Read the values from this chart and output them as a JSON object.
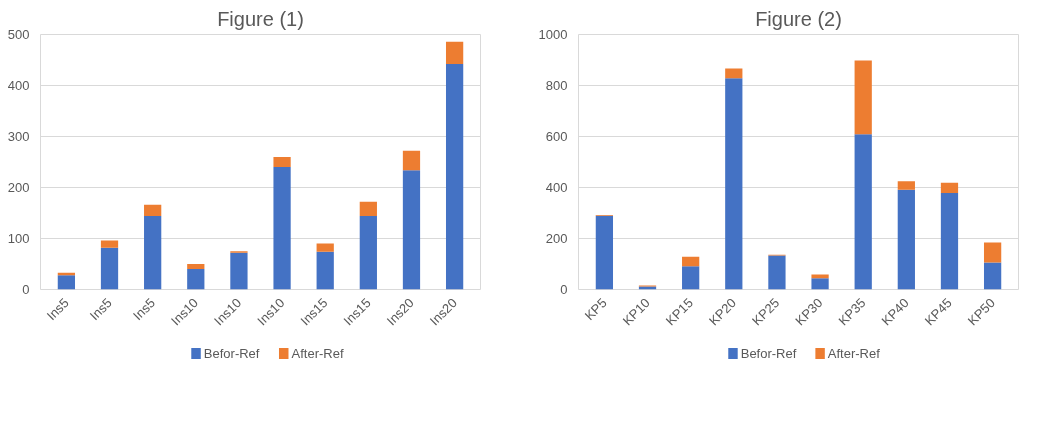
{
  "chart_data": [
    {
      "type": "bar",
      "title": "Figure (1)",
      "stacked": true,
      "categories": [
        "Ins5",
        "Ins5",
        "Ins5",
        "Ins10",
        "Ins10",
        "Ins10",
        "Ins15",
        "Ins15",
        "Ins20",
        "Ins20"
      ],
      "series": [
        {
          "name": "Befor-Ref",
          "color": "#4472c4",
          "values": [
            28,
            82,
            144,
            40,
            72,
            240,
            74,
            144,
            234,
            442
          ]
        },
        {
          "name": "After-Ref",
          "color": "#ed7d31",
          "values": [
            5,
            14,
            22,
            10,
            3,
            20,
            16,
            28,
            38,
            44
          ]
        }
      ],
      "ylim": [
        0,
        500
      ],
      "yticks": [
        0,
        100,
        200,
        300,
        400,
        500
      ],
      "grid": "y",
      "legend": "bottom"
    },
    {
      "type": "bar",
      "title": "Figure (2)",
      "stacked": true,
      "categories": [
        "KP5",
        "KP10",
        "KP15",
        "KP20",
        "KP25",
        "KP30",
        "KP35",
        "KP40",
        "KP45",
        "KP50"
      ],
      "series": [
        {
          "name": "Befor-Ref",
          "color": "#4472c4",
          "values": [
            289,
            12,
            91,
            828,
            133,
            44,
            609,
            391,
            378,
            106
          ]
        },
        {
          "name": "After-Ref",
          "color": "#ed7d31",
          "values": [
            3,
            4,
            37,
            39,
            3,
            15,
            289,
            34,
            41,
            78
          ]
        }
      ],
      "ylim": [
        0,
        1000
      ],
      "yticks": [
        0,
        200,
        400,
        600,
        800,
        1000
      ],
      "grid": "y",
      "legend": "bottom"
    }
  ]
}
